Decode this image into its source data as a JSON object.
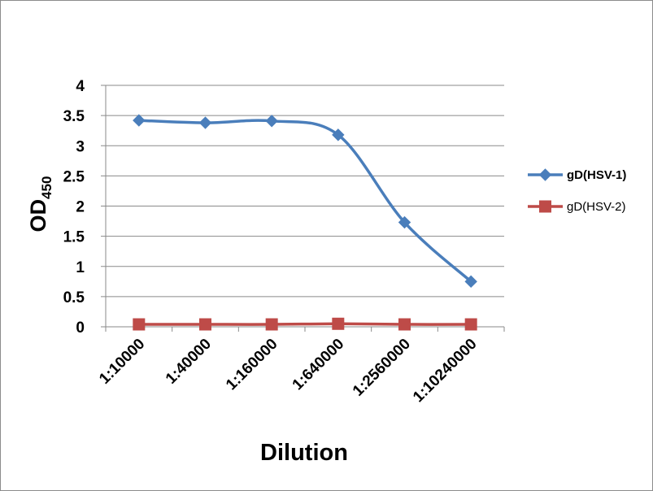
{
  "chart_data": {
    "type": "line",
    "categories": [
      "1:10000",
      "1:40000",
      "1:160000",
      "1:640000",
      "1:2560000",
      "1:10240000"
    ],
    "series": [
      {
        "name": "gD(HSV-1)",
        "values": [
          3.42,
          3.38,
          3.41,
          3.18,
          1.73,
          0.75
        ],
        "color": "#4a7ebb",
        "marker": "diamond",
        "smooth": true
      },
      {
        "name": "gD(HSV-2)",
        "values": [
          0.04,
          0.04,
          0.04,
          0.05,
          0.04,
          0.04
        ],
        "color": "#be4b48",
        "marker": "square",
        "smooth": true
      }
    ],
    "xlabel": "Dilution",
    "ylabel": "OD",
    "ylabel_subscript": "450",
    "ylim": [
      0,
      4
    ],
    "yticks": [
      "0",
      "0.5",
      "1",
      "1.5",
      "2",
      "2.5",
      "3",
      "3.5",
      "4"
    ],
    "grid": true,
    "legend_position": "right"
  }
}
